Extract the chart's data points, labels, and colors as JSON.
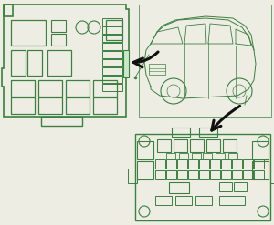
{
  "bg_color": "#eeede3",
  "line_color": "#3a8040",
  "arrow_color": "#111111",
  "fig_width": 3.0,
  "fig_height": 2.47,
  "dpi": 100
}
